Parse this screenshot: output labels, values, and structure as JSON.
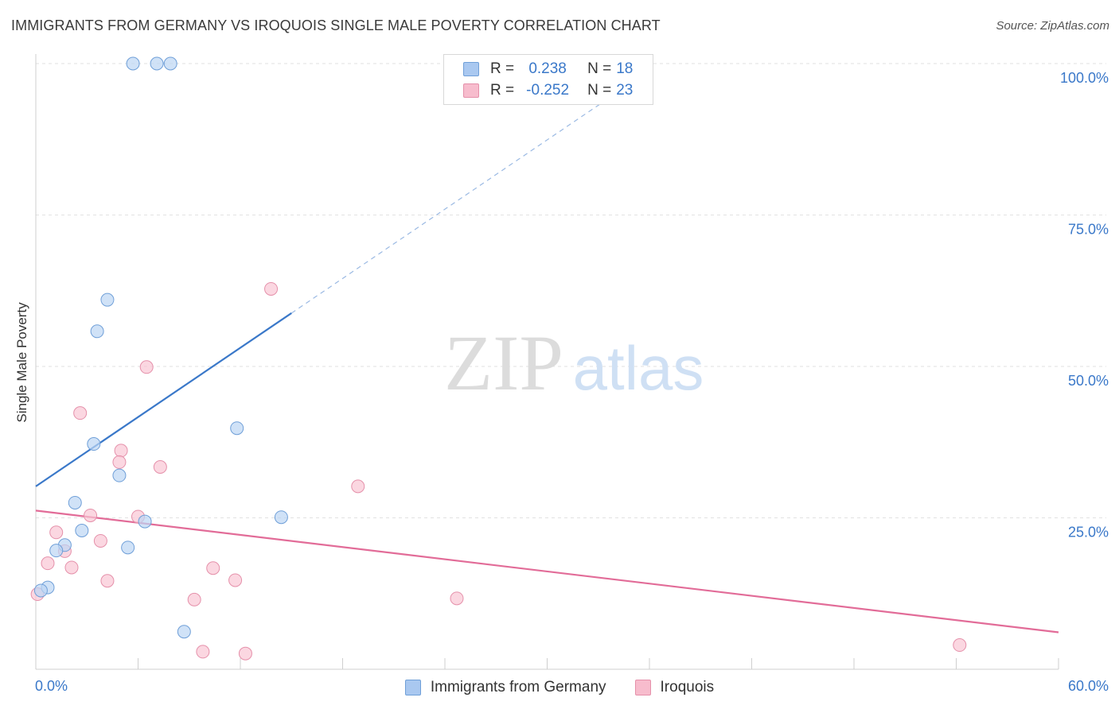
{
  "header": {
    "title": "IMMIGRANTS FROM GERMANY VS IROQUOIS SINGLE MALE POVERTY CORRELATION CHART",
    "source": "Source: ZipAtlas.com"
  },
  "watermark": {
    "zip": "ZIP",
    "atlas": "atlas"
  },
  "legend": {
    "rows": [
      {
        "r_label": "R =",
        "r_value": "0.238",
        "n_label": "N =",
        "n_value": "18",
        "color": "#a9c8f0",
        "border": "#6f9fd8"
      },
      {
        "r_label": "R =",
        "r_value": "-0.252",
        "n_label": "N =",
        "n_value": "23",
        "color": "#f7bccd",
        "border": "#e590aa"
      }
    ]
  },
  "bottom_legend": {
    "series1": "Immigrants from Germany",
    "series2": "Iroquois"
  },
  "chart_data": {
    "type": "scatter",
    "ylabel": "Single Male Poverty",
    "xlim": [
      0,
      60
    ],
    "ylim": [
      0,
      100
    ],
    "x_tick_labels": {
      "min": "0.0%",
      "max": "60.0%"
    },
    "y_tick_labels": [
      "25.0%",
      "50.0%",
      "75.0%",
      "100.0%"
    ],
    "y_tick_values": [
      25,
      50,
      75,
      100
    ],
    "grid": true,
    "legend_position": "top-center",
    "colors": {
      "blue": "#3a78c9",
      "pink": "#e26c98",
      "blue_fill": "#bcd5f4",
      "pink_fill": "#f9c6d4"
    },
    "series": [
      {
        "name": "Immigrants from Germany",
        "color": "#3a78c9",
        "points": [
          {
            "x": 5.7,
            "y": 100
          },
          {
            "x": 7.1,
            "y": 100
          },
          {
            "x": 7.9,
            "y": 100
          },
          {
            "x": 4.2,
            "y": 61
          },
          {
            "x": 3.6,
            "y": 55.8
          },
          {
            "x": 11.8,
            "y": 39.8
          },
          {
            "x": 3.4,
            "y": 37.2
          },
          {
            "x": 4.9,
            "y": 32
          },
          {
            "x": 2.3,
            "y": 27.5
          },
          {
            "x": 14.4,
            "y": 25.1
          },
          {
            "x": 6.4,
            "y": 24.4
          },
          {
            "x": 2.7,
            "y": 22.9
          },
          {
            "x": 1.7,
            "y": 20.5
          },
          {
            "x": 1.2,
            "y": 19.6
          },
          {
            "x": 5.4,
            "y": 20.1
          },
          {
            "x": 0.7,
            "y": 13.5
          },
          {
            "x": 0.3,
            "y": 13
          },
          {
            "x": 8.7,
            "y": 6.2
          }
        ],
        "trend": {
          "x0": 0,
          "y0": 30.2,
          "x1": 15,
          "y1": 58.8,
          "dashed_to_x": 36
        }
      },
      {
        "name": "Iroquois",
        "color": "#e26c98",
        "points": [
          {
            "x": 13.8,
            "y": 62.8
          },
          {
            "x": 6.5,
            "y": 49.9
          },
          {
            "x": 2.6,
            "y": 42.3
          },
          {
            "x": 5.0,
            "y": 36.1
          },
          {
            "x": 4.9,
            "y": 34.2
          },
          {
            "x": 7.3,
            "y": 33.4
          },
          {
            "x": 18.9,
            "y": 30.2
          },
          {
            "x": 3.2,
            "y": 25.4
          },
          {
            "x": 6.0,
            "y": 25.2
          },
          {
            "x": 1.2,
            "y": 22.6
          },
          {
            "x": 3.8,
            "y": 21.2
          },
          {
            "x": 1.7,
            "y": 19.5
          },
          {
            "x": 0.7,
            "y": 17.5
          },
          {
            "x": 2.1,
            "y": 16.8
          },
          {
            "x": 10.4,
            "y": 16.7
          },
          {
            "x": 11.7,
            "y": 14.7
          },
          {
            "x": 4.2,
            "y": 14.6
          },
          {
            "x": 0.1,
            "y": 12.4
          },
          {
            "x": 9.3,
            "y": 11.5
          },
          {
            "x": 24.7,
            "y": 11.7
          },
          {
            "x": 9.8,
            "y": 2.9
          },
          {
            "x": 12.3,
            "y": 2.6
          },
          {
            "x": 54.2,
            "y": 4
          }
        ],
        "trend": {
          "x0": 0,
          "y0": 26.2,
          "x1": 60,
          "y1": 6.1
        }
      }
    ]
  }
}
